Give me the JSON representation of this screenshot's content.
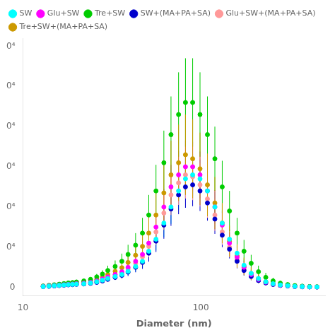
{
  "chart_data": {
    "type": "scatter",
    "xlabel": "Diameter (nm)",
    "log": "x",
    "grid": false,
    "legend": "upper left",
    "marker": "o",
    "xlim": [
      10,
      500
    ],
    "xticks": [
      10,
      100
    ],
    "ylim": [
      -2000,
      62000
    ],
    "yticks": [
      0,
      {
        "value": 10000,
        "label": "0⁴"
      },
      {
        "value": 20000,
        "label": "0⁴"
      },
      {
        "value": 30000,
        "label": "0⁴"
      },
      {
        "value": 40000,
        "label": "0⁴"
      },
      {
        "value": 50000,
        "label": "0⁴"
      },
      {
        "value": 60000,
        "label": "0⁴"
      }
    ],
    "x": [
      13,
      14,
      15,
      16,
      17,
      18,
      19,
      20,
      22,
      24,
      26,
      28,
      30,
      33,
      36,
      39,
      43,
      47,
      51,
      56,
      62,
      68,
      75,
      82,
      90,
      99,
      109,
      120,
      132,
      145,
      160,
      175,
      192,
      211,
      232,
      255,
      280,
      308,
      338,
      372,
      409,
      450
    ],
    "series": [
      {
        "name": "SW",
        "color": "#00FFFF",
        "values": [
          200,
          300,
          400,
          500,
          600,
          700,
          750,
          800,
          900,
          1100,
          1400,
          1800,
          2200,
          2700,
          3200,
          4000,
          5200,
          6500,
          9000,
          12000,
          16000,
          20000,
          24000,
          27000,
          28000,
          27000,
          24000,
          20000,
          16000,
          12000,
          8500,
          5500,
          3500,
          2200,
          1400,
          900,
          600,
          400,
          250,
          180,
          130,
          100
        ],
        "yerr": [
          100,
          120,
          150,
          180,
          200,
          220,
          240,
          260,
          300,
          350,
          420,
          500,
          600,
          700,
          800,
          1000,
          1300,
          1600,
          2200,
          2800,
          3500,
          4200,
          4800,
          5000,
          5200,
          4800,
          4200,
          3800,
          3200,
          2500,
          1900,
          1400,
          1000,
          700,
          500,
          350,
          250,
          180,
          130,
          100,
          80,
          70
        ]
      },
      {
        "name": "Glu+SW",
        "color": "#FF00FF",
        "values": [
          250,
          350,
          450,
          560,
          660,
          760,
          820,
          900,
          1050,
          1250,
          1600,
          2100,
          2600,
          3200,
          3900,
          5000,
          6500,
          8200,
          11000,
          15000,
          20000,
          25000,
          28000,
          30000,
          30000,
          28000,
          24000,
          20000,
          15500,
          11000,
          7500,
          5000,
          3200,
          2000,
          1300,
          850,
          560,
          370,
          240,
          170,
          120,
          90
        ],
        "yerr": [
          120,
          140,
          170,
          200,
          230,
          260,
          280,
          300,
          350,
          420,
          500,
          600,
          750,
          850,
          1000,
          1300,
          1700,
          2200,
          2800,
          3500,
          4500,
          5500,
          6000,
          6500,
          6200,
          5800,
          5000,
          4200,
          3500,
          2700,
          2000,
          1500,
          1100,
          750,
          520,
          370,
          270,
          190,
          140,
          110,
          85,
          70
        ]
      },
      {
        "name": "Tre+SW",
        "color": "#00CC00",
        "values": [
          350,
          500,
          650,
          800,
          950,
          1100,
          1200,
          1350,
          1600,
          2000,
          2600,
          3300,
          4200,
          5200,
          6500,
          8200,
          10500,
          13500,
          18000,
          24000,
          31000,
          38000,
          43000,
          46000,
          46000,
          43000,
          38000,
          32000,
          25000,
          19000,
          13500,
          9000,
          6000,
          3900,
          2500,
          1600,
          1050,
          700,
          450,
          310,
          220,
          160
        ],
        "yerr": [
          150,
          200,
          250,
          290,
          330,
          370,
          400,
          430,
          500,
          600,
          750,
          950,
          1200,
          1500,
          1900,
          2400,
          3000,
          3800,
          5000,
          6500,
          8000,
          9500,
          10500,
          11000,
          11000,
          10500,
          9500,
          8000,
          6500,
          5000,
          3800,
          2800,
          2100,
          1500,
          1100,
          800,
          580,
          420,
          300,
          220,
          160,
          120
        ]
      },
      {
        "name": "SW+(MA+PA+SA)",
        "color": "#0000CC",
        "values": [
          180,
          260,
          350,
          440,
          530,
          620,
          680,
          750,
          850,
          1000,
          1250,
          1600,
          2000,
          2500,
          3000,
          3800,
          5000,
          6200,
          8500,
          11500,
          15500,
          19500,
          23000,
          25000,
          25500,
          24000,
          21000,
          17000,
          13000,
          9500,
          6500,
          4200,
          2700,
          1700,
          1100,
          720,
          480,
          320,
          210,
          150,
          110,
          85
        ],
        "yerr": [
          90,
          110,
          140,
          160,
          190,
          210,
          230,
          250,
          290,
          330,
          400,
          480,
          570,
          650,
          780,
          970,
          1250,
          1600,
          2100,
          2700,
          3400,
          4200,
          4800,
          5200,
          5300,
          5000,
          4400,
          3700,
          3000,
          2300,
          1750,
          1250,
          900,
          640,
          460,
          330,
          240,
          170,
          120,
          95,
          78,
          65
        ]
      },
      {
        "name": "Glu+SW+(MA+PA+SA)",
        "color": "#FF9999",
        "values": [
          220,
          310,
          410,
          510,
          610,
          710,
          780,
          860,
          980,
          1180,
          1480,
          1900,
          2400,
          3000,
          3600,
          4600,
          6000,
          7600,
          10200,
          13800,
          18500,
          23000,
          26000,
          28000,
          27500,
          25500,
          22000,
          18000,
          13800,
          10000,
          6800,
          4500,
          2900,
          1850,
          1200,
          790,
          530,
          350,
          230,
          165,
          120,
          90
        ],
        "yerr": [
          110,
          130,
          160,
          190,
          220,
          250,
          270,
          290,
          330,
          390,
          470,
          560,
          680,
          800,
          950,
          1200,
          1550,
          2000,
          2600,
          3200,
          4200,
          5000,
          5500,
          5900,
          5800,
          5400,
          4700,
          4000,
          3200,
          2500,
          1850,
          1350,
          980,
          700,
          500,
          360,
          260,
          190,
          140,
          110,
          87,
          72
        ]
      },
      {
        "name": "Tre+SW+(MA+PA+SA)",
        "color": "#CC9900",
        "values": [
          280,
          400,
          530,
          660,
          790,
          920,
          1010,
          1120,
          1300,
          1580,
          2000,
          2560,
          3200,
          4000,
          4900,
          6200,
          8000,
          10200,
          13500,
          18000,
          23500,
          28000,
          31000,
          33000,
          32000,
          29500,
          25500,
          21000,
          16000,
          11500,
          7800,
          5200,
          3400,
          2200,
          1420,
          930,
          620,
          415,
          275,
          195,
          145,
          110
        ],
        "yerr": [
          130,
          170,
          220,
          260,
          300,
          340,
          370,
          400,
          460,
          550,
          680,
          850,
          1050,
          1300,
          1600,
          2000,
          2600,
          3200,
          4200,
          5500,
          7000,
          8500,
          9500,
          10000,
          9800,
          9000,
          7800,
          6500,
          5000,
          3900,
          2900,
          2200,
          1600,
          1150,
          830,
          600,
          440,
          320,
          230,
          170,
          125,
          95
        ]
      }
    ]
  }
}
